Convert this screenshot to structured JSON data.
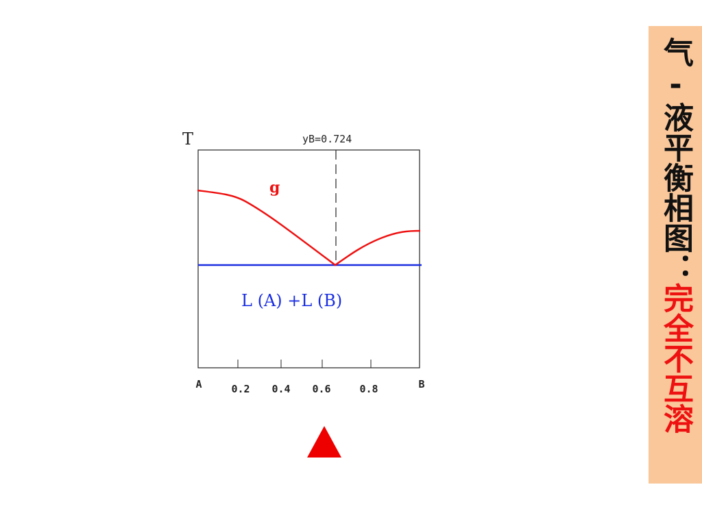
{
  "diagram": {
    "axis_label": "T",
    "annotation": "yB=0.724",
    "gas_label": "g",
    "liquid_label": "L (A) +L (B)",
    "x_tick_labels": [
      "A",
      "0.2",
      "0.4",
      "0.6",
      "0.8",
      "B"
    ]
  },
  "sidebar": {
    "title": "气-液平衡相图：",
    "subtitle": "完全不互溶"
  }
}
